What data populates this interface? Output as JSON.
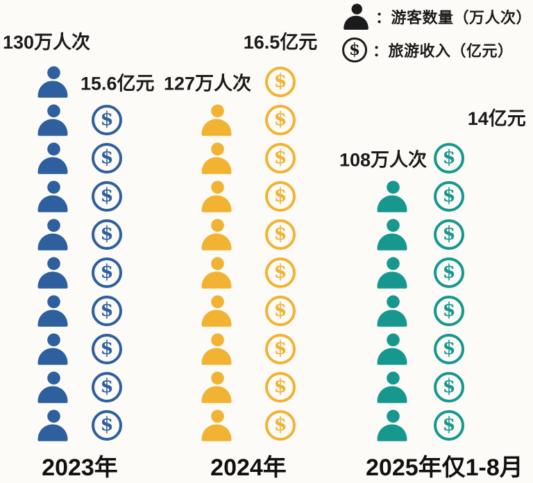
{
  "colors": {
    "y2023": "#2e5f9e",
    "y2024": "#f2b232",
    "y2025": "#17988f",
    "legend_icon": "#1b1b1b",
    "text": "#1b1b1b",
    "background": "#fcfbf7"
  },
  "legend": {
    "items": [
      {
        "icon": "person-icon",
        "label": "：游客数量（万人次）"
      },
      {
        "icon": "dollar-coin-icon",
        "label": "：旅游收入（亿元）"
      }
    ]
  },
  "chart_data": {
    "type": "pictograph",
    "categories": [
      "2023年",
      "2024年",
      "2025年仅1-8月"
    ],
    "series": [
      {
        "name": "游客数量",
        "unit": "万人次",
        "values": [
          130,
          127,
          108
        ],
        "icon": "person",
        "icon_counts": [
          10,
          9,
          7
        ]
      },
      {
        "name": "旅游收入",
        "unit": "亿元",
        "values": [
          15.6,
          16.5,
          14
        ],
        "icon": "dollar-coin",
        "icon_counts": [
          9,
          10,
          8
        ]
      }
    ],
    "legend_position": "top-right",
    "groups": [
      {
        "year_label": "2023年",
        "tourists_text": "130万人次",
        "revenue_text": "15.6亿元",
        "tourists_value": 130,
        "revenue_value": 15.6,
        "person_icons": 10,
        "dollar_icons": 9,
        "color": "#2e5f9e"
      },
      {
        "year_label": "2024年",
        "tourists_text": "127万人次",
        "revenue_text": "16.5亿元",
        "tourists_value": 127,
        "revenue_value": 16.5,
        "person_icons": 9,
        "dollar_icons": 10,
        "color": "#f2b232"
      },
      {
        "year_label": "2025年仅1-8月",
        "tourists_text": "108万人次",
        "revenue_text": "14亿元",
        "tourists_value": 108,
        "revenue_value": 14,
        "person_icons": 7,
        "dollar_icons": 8,
        "color": "#17988f"
      }
    ]
  }
}
